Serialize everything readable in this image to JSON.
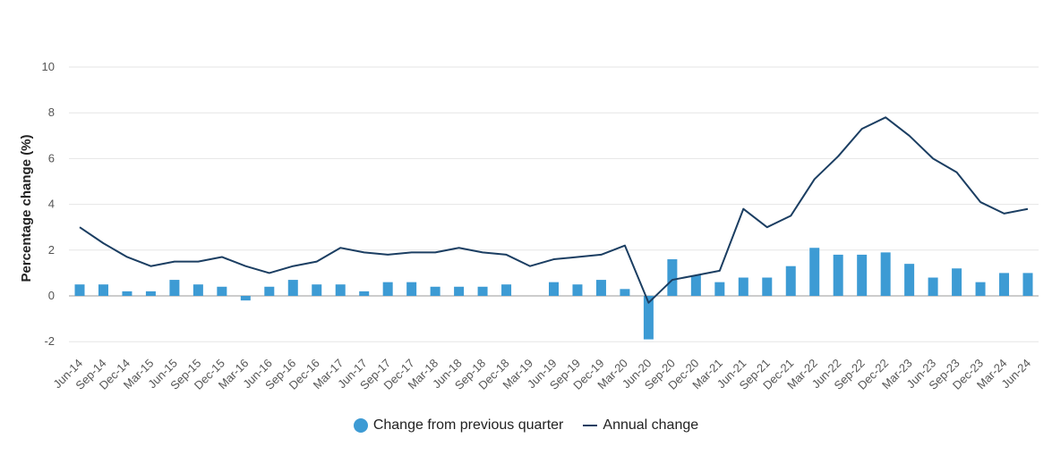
{
  "colors": {
    "bar": "#3d9bd4",
    "line": "#1b3e62",
    "grid": "#e6e6e6",
    "axis": "#cccccc"
  },
  "chart_data": {
    "type": "bar",
    "title": "",
    "xlabel": "",
    "ylabel": "Percentage change (%)",
    "ylim": [
      -2.5,
      10
    ],
    "yticks": [
      -2,
      0,
      2,
      4,
      6,
      8,
      10
    ],
    "ytick_labels": [
      "-2",
      "0",
      "2",
      "4",
      "6",
      "8",
      "10"
    ],
    "grid": true,
    "legend_position": "bottom",
    "categories": [
      "Jun-14",
      "Sep-14",
      "Dec-14",
      "Mar-15",
      "Jun-15",
      "Sep-15",
      "Dec-15",
      "Mar-16",
      "Jun-16",
      "Sep-16",
      "Dec-16",
      "Mar-17",
      "Jun-17",
      "Sep-17",
      "Dec-17",
      "Mar-18",
      "Jun-18",
      "Sep-18",
      "Dec-18",
      "Mar-19",
      "Jun-19",
      "Sep-19",
      "Dec-19",
      "Mar-20",
      "Jun-20",
      "Sep-20",
      "Dec-20",
      "Mar-21",
      "Jun-21",
      "Sep-21",
      "Dec-21",
      "Mar-22",
      "Jun-22",
      "Sep-22",
      "Dec-22",
      "Mar-23",
      "Jun-23",
      "Sep-23",
      "Dec-23",
      "Mar-24",
      "Jun-24"
    ],
    "series": [
      {
        "name": "Change from previous quarter",
        "type": "bar",
        "values": [
          0.5,
          0.5,
          0.2,
          0.2,
          0.7,
          0.5,
          0.4,
          -0.2,
          0.4,
          0.7,
          0.5,
          0.5,
          0.2,
          0.6,
          0.6,
          0.4,
          0.4,
          0.4,
          0.5,
          0.0,
          0.6,
          0.5,
          0.7,
          0.3,
          -1.9,
          1.6,
          0.9,
          0.6,
          0.8,
          0.8,
          1.3,
          2.1,
          1.8,
          1.8,
          1.9,
          1.4,
          0.8,
          1.2,
          0.6,
          1.0,
          1.0
        ]
      },
      {
        "name": "Annual change",
        "type": "line",
        "values": [
          3.0,
          2.3,
          1.7,
          1.3,
          1.5,
          1.5,
          1.7,
          1.3,
          1.0,
          1.3,
          1.5,
          2.1,
          1.9,
          1.8,
          1.9,
          1.9,
          2.1,
          1.9,
          1.8,
          1.3,
          1.6,
          1.7,
          1.8,
          2.2,
          -0.3,
          0.7,
          0.9,
          1.1,
          3.8,
          3.0,
          3.5,
          5.1,
          6.1,
          7.3,
          7.8,
          7.0,
          6.0,
          5.4,
          4.1,
          3.6,
          3.8
        ]
      }
    ]
  }
}
